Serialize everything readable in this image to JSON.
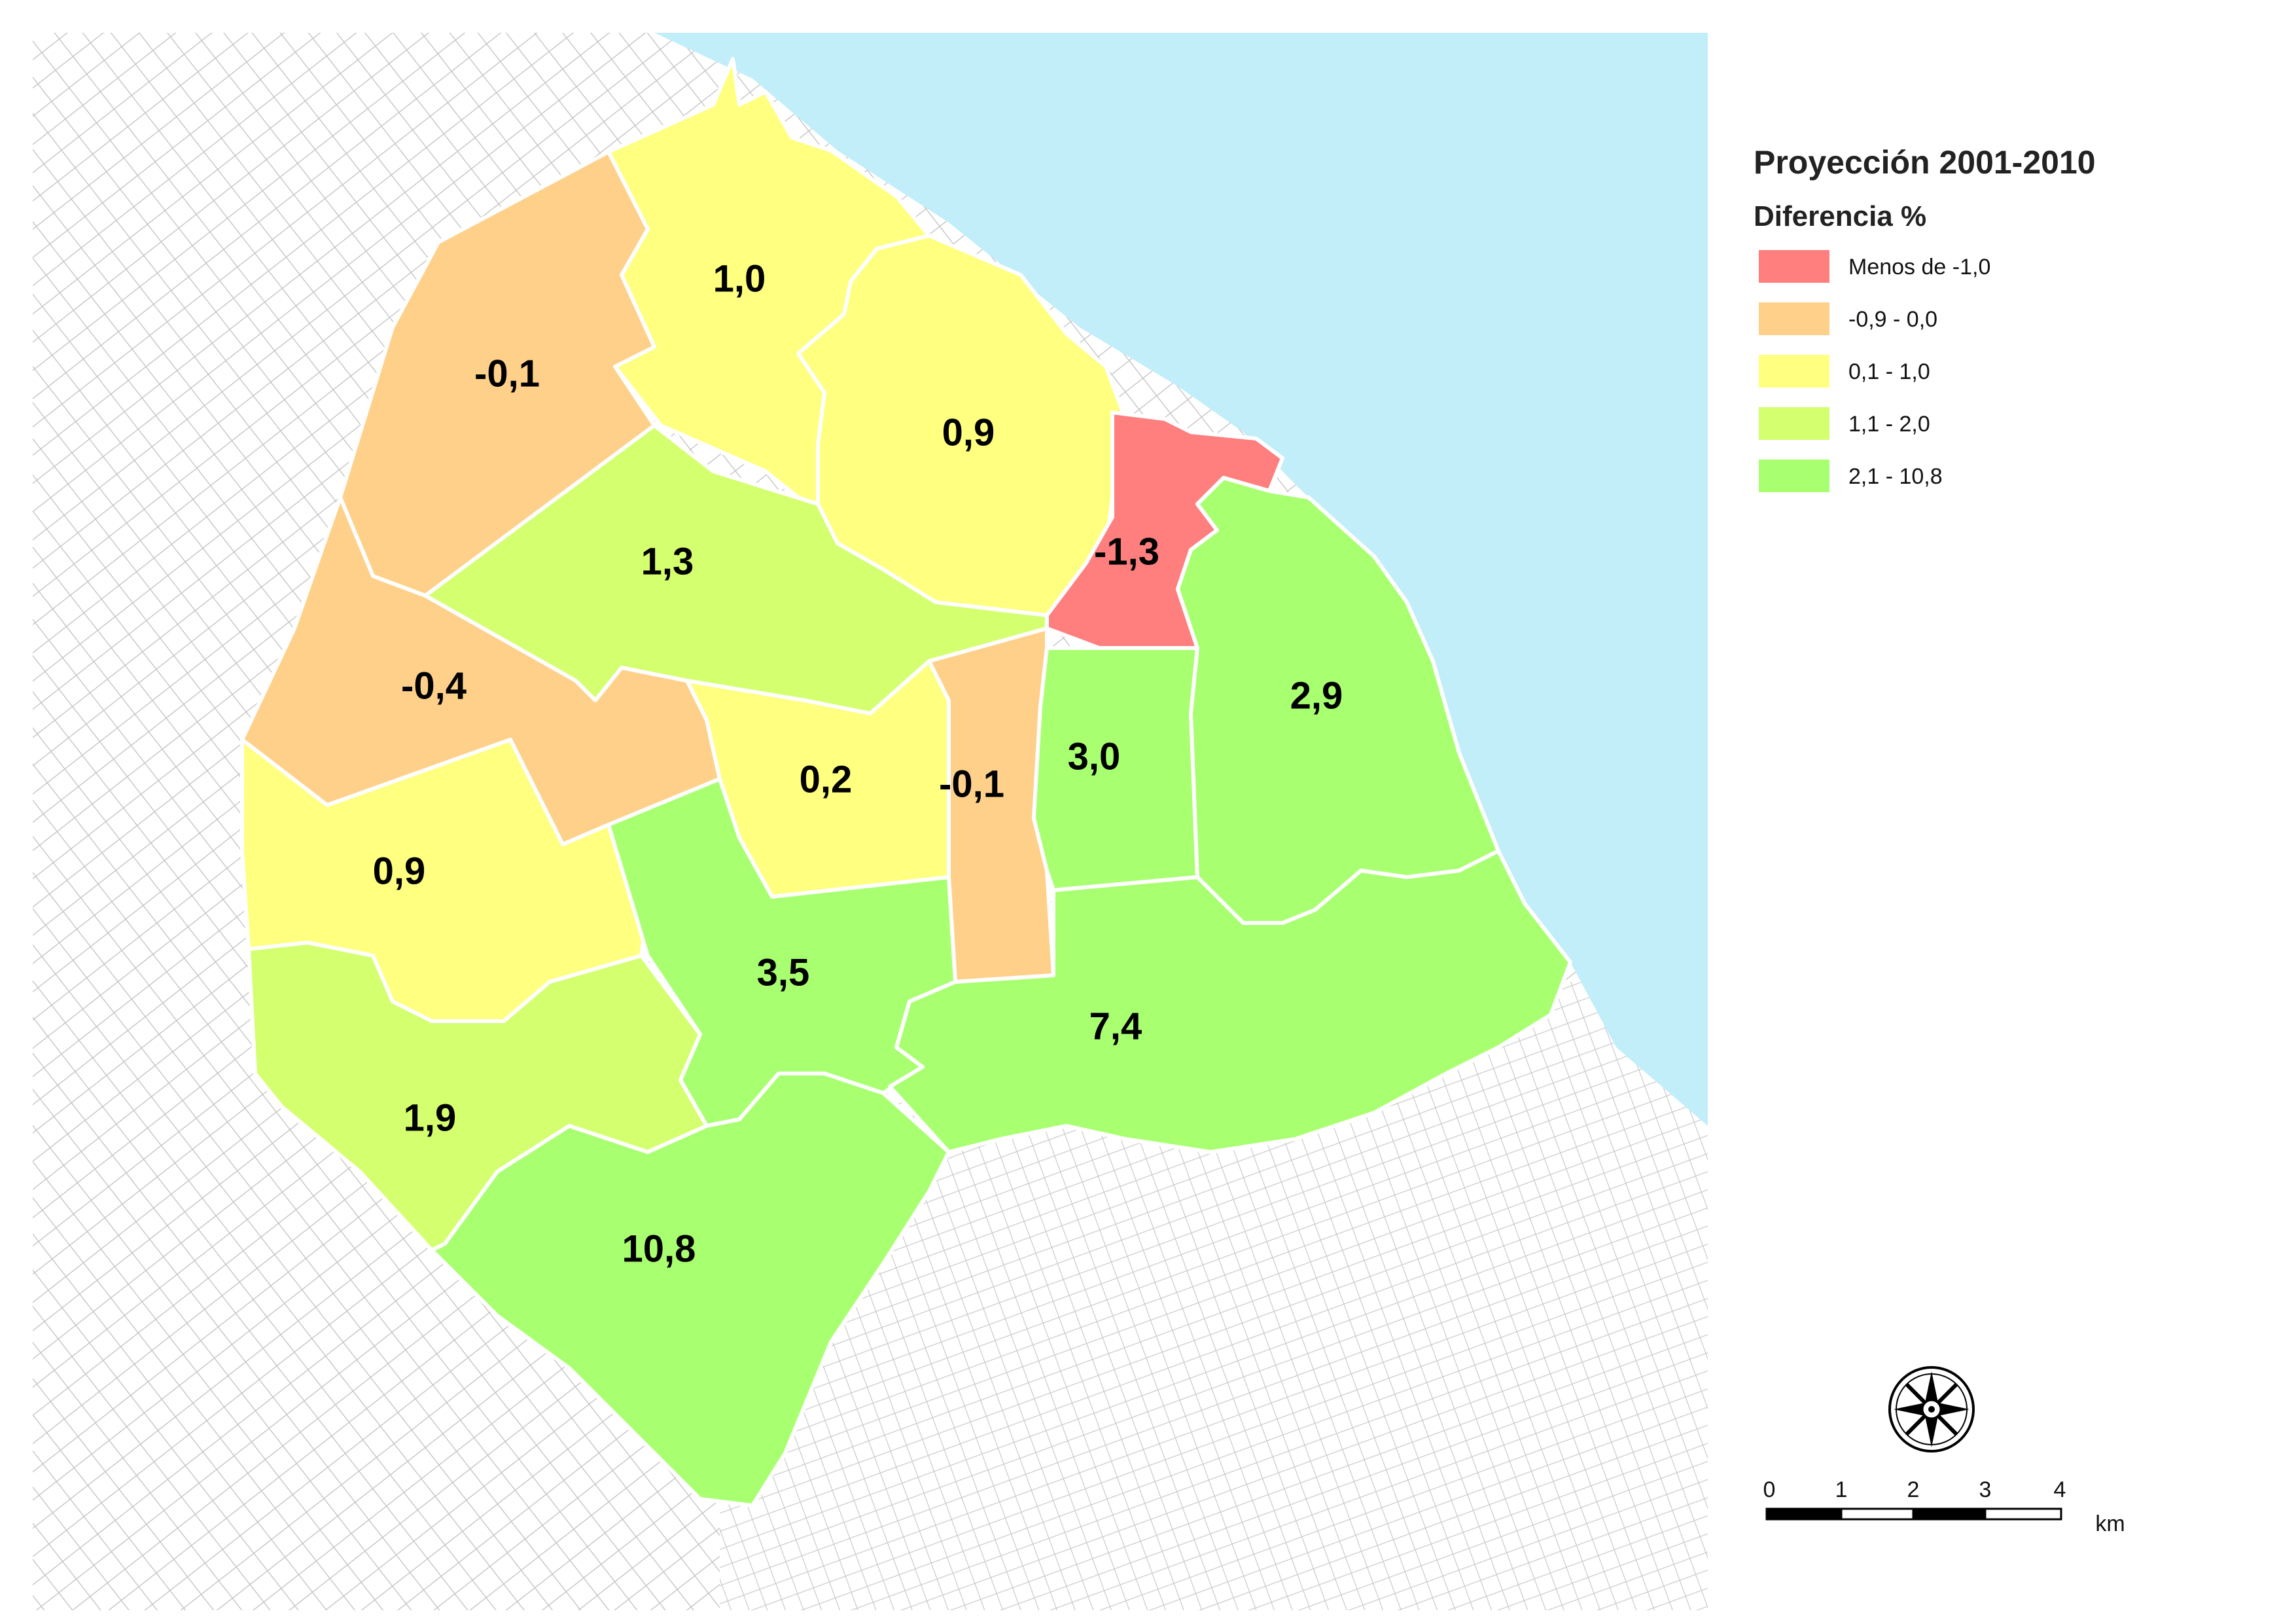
{
  "legend": {
    "title": "Proyección 2001-2010",
    "subtitle": "Diferencia %",
    "classes": [
      {
        "label": "Menos de -1,0",
        "color": "#ff7f7f"
      },
      {
        "label": "-0,9 - 0,0",
        "color": "#ffd08a"
      },
      {
        "label": "0,1 - 1,0",
        "color": "#ffff80"
      },
      {
        "label": "1,1 - 2,0",
        "color": "#d4ff6e"
      },
      {
        "label": "2,1 - 10,8",
        "color": "#a8ff70"
      }
    ]
  },
  "zones": [
    {
      "id": "z13",
      "value": "1,0",
      "class": 2
    },
    {
      "id": "z12",
      "value": "-0,1",
      "class": 1
    },
    {
      "id": "z14",
      "value": "0,9",
      "class": 2
    },
    {
      "id": "z1",
      "value": "-1,3",
      "class": 0
    },
    {
      "id": "z15",
      "value": "1,3",
      "class": 3
    },
    {
      "id": "z11",
      "value": "-0,4",
      "class": 1
    },
    {
      "id": "z6",
      "value": "0,2",
      "class": 2
    },
    {
      "id": "z5",
      "value": "-0,1",
      "class": 1
    },
    {
      "id": "z3",
      "value": "3,0",
      "class": 4
    },
    {
      "id": "z2",
      "value": "2,9",
      "class": 4
    },
    {
      "id": "z10",
      "value": "0,9",
      "class": 2
    },
    {
      "id": "z7",
      "value": "3,5",
      "class": 4
    },
    {
      "id": "z4",
      "value": "7,4",
      "class": 4
    },
    {
      "id": "z9",
      "value": "1,9",
      "class": 3
    },
    {
      "id": "z8",
      "value": "10,8",
      "class": 4
    }
  ],
  "scale_bar": {
    "ticks": [
      "0",
      "1",
      "2",
      "3",
      "4"
    ],
    "unit": "km"
  },
  "colors": {
    "water": "#c2eefa",
    "background_streets": "#cfcfcf",
    "zone_border": "#ffffff"
  },
  "icons": {
    "compass": "compass-rose-icon"
  }
}
